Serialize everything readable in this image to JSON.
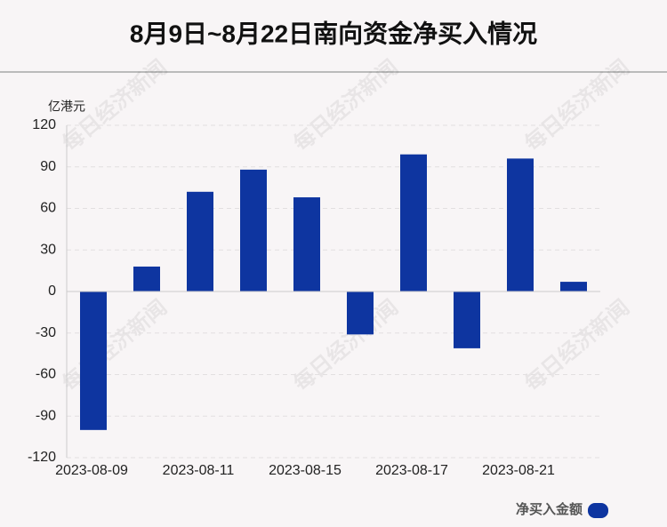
{
  "chart_data": {
    "type": "bar",
    "title": "8月9日~8月22日南向资金净买入情况",
    "y_label": "亿港元",
    "watermark": "每日经济新闻",
    "categories": [
      "2023-08-09",
      null,
      "2023-08-11",
      null,
      "2023-08-15",
      null,
      "2023-08-17",
      null,
      "2023-08-21",
      null
    ],
    "series": [
      {
        "name": "净买入金额",
        "color": "#0e35a0",
        "values": [
          -100,
          18,
          72,
          88,
          68,
          -31,
          99,
          -41,
          96,
          7
        ]
      }
    ],
    "ylim": [
      -120,
      120
    ],
    "yticks": [
      -120,
      -90,
      -60,
      -30,
      0,
      30,
      60,
      90,
      120
    ],
    "grid": true
  }
}
